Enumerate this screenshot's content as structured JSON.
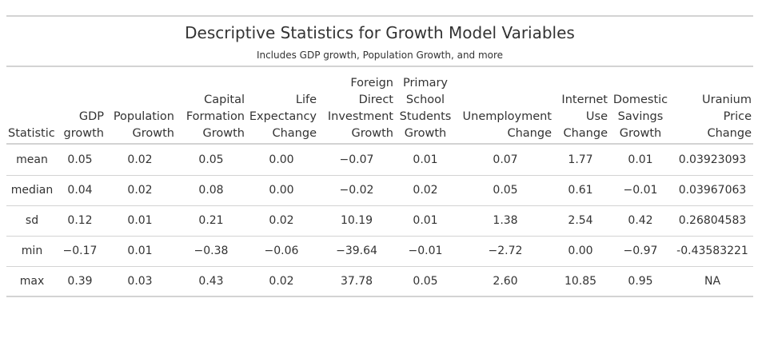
{
  "table": {
    "title": "Descriptive Statistics for Growth Model Variables",
    "subtitle": "Includes GDP growth, Population Growth, and more",
    "columns": [
      {
        "lines": [
          "Statistic"
        ]
      },
      {
        "lines": [
          "GDP",
          "growth"
        ]
      },
      {
        "lines": [
          "Population",
          "Growth"
        ]
      },
      {
        "lines": [
          "Capital",
          "Formation",
          "Growth"
        ]
      },
      {
        "lines": [
          "Life",
          "Expectancy",
          "Change"
        ]
      },
      {
        "lines": [
          "Foreign",
          "Direct",
          "Investment",
          "Growth"
        ]
      },
      {
        "lines": [
          "Primary",
          "School",
          "Students",
          "Growth"
        ]
      },
      {
        "lines": [
          "Unemployment",
          "Change"
        ]
      },
      {
        "lines": [
          "Internet",
          "Use",
          "Change"
        ]
      },
      {
        "lines": [
          "Domestic",
          "Savings",
          "Growth"
        ]
      },
      {
        "lines": [
          "Uranium",
          "Price",
          "Change"
        ]
      }
    ],
    "rows": [
      [
        "mean",
        "0.05",
        "0.02",
        "0.05",
        "0.00",
        "−0.07",
        "0.01",
        "0.07",
        "1.77",
        "0.01",
        "0.03923093"
      ],
      [
        "median",
        "0.04",
        "0.02",
        "0.08",
        "0.00",
        "−0.02",
        "0.02",
        "0.05",
        "0.61",
        "−0.01",
        "0.03967063"
      ],
      [
        "sd",
        "0.12",
        "0.01",
        "0.21",
        "0.02",
        "10.19",
        "0.01",
        "1.38",
        "2.54",
        "0.42",
        "0.26804583"
      ],
      [
        "min",
        "−0.17",
        "0.01",
        "−0.38",
        "−0.06",
        "−39.64",
        "−0.01",
        "−2.72",
        "0.00",
        "−0.97",
        "-0.43583221"
      ],
      [
        "max",
        "0.39",
        "0.03",
        "0.43",
        "0.02",
        "37.78",
        "0.05",
        "2.60",
        "10.85",
        "0.95",
        "NA"
      ]
    ]
  }
}
